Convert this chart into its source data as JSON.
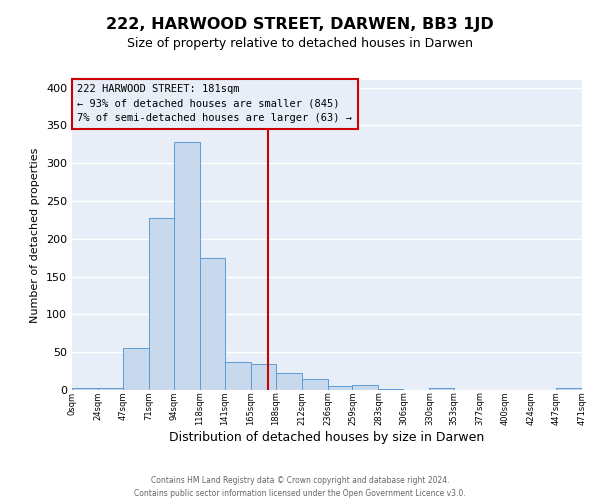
{
  "title": "222, HARWOOD STREET, DARWEN, BB3 1JD",
  "subtitle": "Size of property relative to detached houses in Darwen",
  "xlabel": "Distribution of detached houses by size in Darwen",
  "ylabel": "Number of detached properties",
  "bar_edges": [
    0,
    24,
    47,
    71,
    94,
    118,
    141,
    165,
    188,
    212,
    236,
    259,
    283,
    306,
    330,
    353,
    377,
    400,
    424,
    447,
    471
  ],
  "bar_heights": [
    2,
    2,
    55,
    228,
    328,
    175,
    37,
    35,
    22,
    15,
    5,
    6,
    1,
    0,
    3,
    0,
    0,
    0,
    0,
    3
  ],
  "bar_color": "#c9d9ed",
  "bar_edgecolor": "#5b9bd5",
  "reference_line_x": 181,
  "annotation_title": "222 HARWOOD STREET: 181sqm",
  "annotation_line1": "← 93% of detached houses are smaller (845)",
  "annotation_line2": "7% of semi-detached houses are larger (63) →",
  "vline_color": "#cc0000",
  "annotation_box_edgecolor": "#cc0000",
  "ylim": [
    0,
    410
  ],
  "xlim": [
    0,
    471
  ],
  "tick_labels": [
    "0sqm",
    "24sqm",
    "47sqm",
    "71sqm",
    "94sqm",
    "118sqm",
    "141sqm",
    "165sqm",
    "188sqm",
    "212sqm",
    "236sqm",
    "259sqm",
    "283sqm",
    "306sqm",
    "330sqm",
    "353sqm",
    "377sqm",
    "400sqm",
    "424sqm",
    "447sqm",
    "471sqm"
  ],
  "footnote1": "Contains HM Land Registry data © Crown copyright and database right 2024.",
  "footnote2": "Contains public sector information licensed under the Open Government Licence v3.0.",
  "fig_bg_color": "#ffffff",
  "ax_bg_color": "#e8eef7",
  "grid_color": "#ffffff",
  "title_fontsize": 11.5,
  "subtitle_fontsize": 9,
  "xlabel_fontsize": 9,
  "ylabel_fontsize": 8,
  "tick_fontsize": 6,
  "footnote_fontsize": 5.5,
  "annotation_fontsize": 7.5
}
